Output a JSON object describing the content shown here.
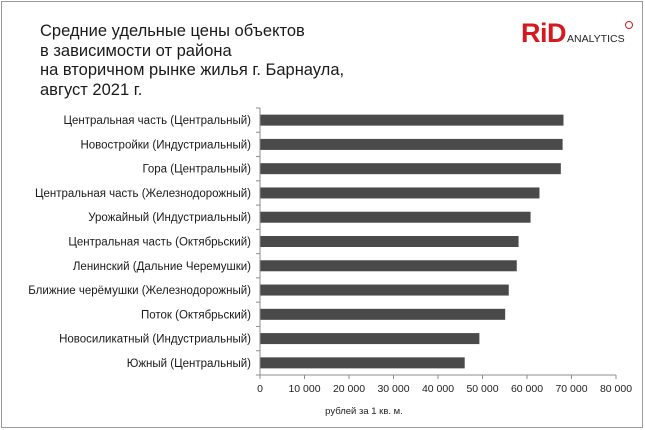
{
  "logo": {
    "brand": "RiD",
    "suffix": "ANALYTICS"
  },
  "chart_data": {
    "type": "bar",
    "orientation": "horizontal",
    "title_lines": [
      "Средние удельные цены объектов",
      "в зависимости от района",
      "на вторичном рынке жилья г. Барнаула,",
      "август 2021 г."
    ],
    "categories": [
      "Центральная часть (Центральный)",
      "Новостройки (Индустриальный)",
      "Гора (Центральный)",
      "Центральная часть (Железнодорожный)",
      "Урожайный (Индустриальный)",
      "Центральная часть (Октябрьский)",
      "Ленинский (Дальние Черемушки)",
      "Ближние черёмушки (Железнодорожный)",
      "Поток (Октябрьский)",
      "Новосиликатный (Индустриальный)",
      "Южный (Центральный)"
    ],
    "values": [
      68200,
      68000,
      67600,
      62800,
      60800,
      58100,
      57700,
      55900,
      55100,
      49300,
      46000
    ],
    "xlabel": "рублей за 1 кв. м.",
    "xlim": [
      0,
      80000
    ],
    "xticks": [
      0,
      10000,
      20000,
      30000,
      40000,
      50000,
      60000,
      70000,
      80000
    ],
    "xtick_labels": [
      "0",
      "10 000",
      "20 000",
      "30 000",
      "40 000",
      "50 000",
      "60 000",
      "70 000",
      "80 000"
    ],
    "grid": false,
    "legend": "none",
    "bar_color": "#4a4a4a"
  }
}
